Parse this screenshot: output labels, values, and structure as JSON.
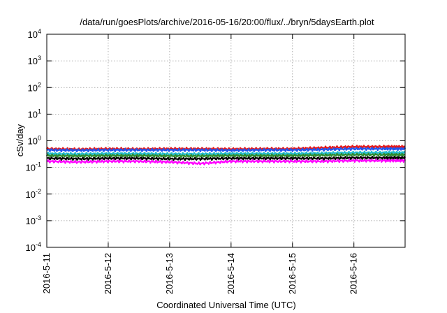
{
  "chart_data": {
    "type": "line",
    "title": "/data/run/goesPlots/archive/2016-05-16/20:00/flux/../bryn/5daysEarth.plot",
    "xlabel": "Coordinated Universal Time (UTC)",
    "ylabel": "cSv/day",
    "yscale": "log",
    "ylim": [
      0.0001,
      10000
    ],
    "yticks": [
      {
        "value": 0.0001,
        "base": "10",
        "exp": "-4"
      },
      {
        "value": 0.001,
        "base": "10",
        "exp": "-3"
      },
      {
        "value": 0.01,
        "base": "10",
        "exp": "-2"
      },
      {
        "value": 0.1,
        "base": "10",
        "exp": "-1"
      },
      {
        "value": 1,
        "base": "10",
        "exp": "0"
      },
      {
        "value": 10,
        "base": "10",
        "exp": "1"
      },
      {
        "value": 100,
        "base": "10",
        "exp": "2"
      },
      {
        "value": 1000,
        "base": "10",
        "exp": "3"
      },
      {
        "value": 10000,
        "base": "10",
        "exp": "4"
      }
    ],
    "xlim": [
      "2016-05-11",
      "2016-05-16 20:00"
    ],
    "xticks": [
      "2016-5-11",
      "2016-5-12",
      "2016-5-13",
      "2016-5-14",
      "2016-5-15",
      "2016-5-16"
    ],
    "grid": true,
    "series": [
      {
        "color": "#e41a1c",
        "x": [
          "2016-05-11",
          "2016-05-11 12:00",
          "2016-05-12",
          "2016-05-12 12:00",
          "2016-05-13",
          "2016-05-13 12:00",
          "2016-05-14",
          "2016-05-14 12:00",
          "2016-05-15",
          "2016-05-15 12:00",
          "2016-05-16",
          "2016-05-16 12:00",
          "2016-05-16 20:00"
        ],
        "values": [
          0.5,
          0.48,
          0.5,
          0.49,
          0.5,
          0.5,
          0.49,
          0.5,
          0.5,
          0.55,
          0.6,
          0.6,
          0.6
        ]
      },
      {
        "color": "#2255ee",
        "x": [
          "2016-05-11",
          "2016-05-11 12:00",
          "2016-05-12",
          "2016-05-12 12:00",
          "2016-05-13",
          "2016-05-13 12:00",
          "2016-05-14",
          "2016-05-14 12:00",
          "2016-05-15",
          "2016-05-15 12:00",
          "2016-05-16",
          "2016-05-16 12:00",
          "2016-05-16 20:00"
        ],
        "values": [
          0.45,
          0.44,
          0.45,
          0.45,
          0.45,
          0.45,
          0.44,
          0.45,
          0.45,
          0.47,
          0.5,
          0.5,
          0.5
        ]
      },
      {
        "color": "#22bbcc",
        "x": [
          "2016-05-11",
          "2016-05-11 12:00",
          "2016-05-12",
          "2016-05-12 12:00",
          "2016-05-13",
          "2016-05-13 12:00",
          "2016-05-14",
          "2016-05-14 12:00",
          "2016-05-15",
          "2016-05-15 12:00",
          "2016-05-16",
          "2016-05-16 12:00",
          "2016-05-16 20:00"
        ],
        "values": [
          0.33,
          0.32,
          0.33,
          0.33,
          0.32,
          0.32,
          0.33,
          0.33,
          0.33,
          0.34,
          0.36,
          0.36,
          0.36
        ]
      },
      {
        "color": "#2e8b2e",
        "x": [
          "2016-05-11",
          "2016-05-11 12:00",
          "2016-05-12",
          "2016-05-12 12:00",
          "2016-05-13",
          "2016-05-13 12:00",
          "2016-05-14",
          "2016-05-14 12:00",
          "2016-05-15",
          "2016-05-15 12:00",
          "2016-05-16",
          "2016-05-16 12:00",
          "2016-05-16 20:00"
        ],
        "values": [
          0.28,
          0.27,
          0.28,
          0.28,
          0.27,
          0.27,
          0.28,
          0.28,
          0.28,
          0.29,
          0.3,
          0.3,
          0.3
        ]
      },
      {
        "color": "#000000",
        "x": [
          "2016-05-11",
          "2016-05-11 12:00",
          "2016-05-12",
          "2016-05-12 12:00",
          "2016-05-13",
          "2016-05-13 12:00",
          "2016-05-14",
          "2016-05-14 12:00",
          "2016-05-15",
          "2016-05-15 12:00",
          "2016-05-16",
          "2016-05-16 12:00",
          "2016-05-16 20:00"
        ],
        "values": [
          0.22,
          0.21,
          0.22,
          0.22,
          0.21,
          0.21,
          0.22,
          0.22,
          0.22,
          0.22,
          0.23,
          0.23,
          0.23
        ]
      },
      {
        "color": "#ff00ff",
        "x": [
          "2016-05-11",
          "2016-05-11 12:00",
          "2016-05-12",
          "2016-05-12 12:00",
          "2016-05-13",
          "2016-05-13 12:00",
          "2016-05-14",
          "2016-05-14 12:00",
          "2016-05-15",
          "2016-05-15 12:00",
          "2016-05-16",
          "2016-05-16 12:00",
          "2016-05-16 20:00"
        ],
        "values": [
          0.17,
          0.16,
          0.17,
          0.17,
          0.16,
          0.14,
          0.17,
          0.17,
          0.17,
          0.17,
          0.18,
          0.18,
          0.18
        ]
      }
    ]
  }
}
